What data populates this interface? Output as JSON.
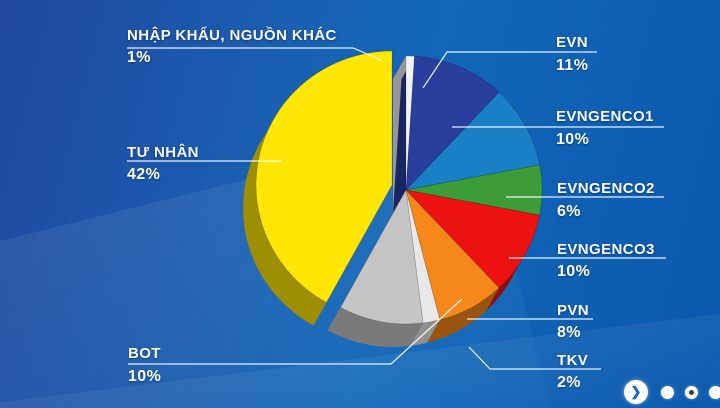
{
  "chart_data": {
    "type": "pie",
    "title": "",
    "style": "3d-exploded",
    "direction": "clockwise",
    "start_angle_deg": 0,
    "unit": "%",
    "slices": [
      {
        "label": "NHẬP KHẨU, NGUỒN KHÁC",
        "value": 1,
        "pct_label": "1%",
        "color": "#f2f2f4"
      },
      {
        "label": "EVN",
        "value": 11,
        "pct_label": "11%",
        "color": "#2a3e9d"
      },
      {
        "label": "EVNGENCO1",
        "value": 10,
        "pct_label": "10%",
        "color": "#1a80c6"
      },
      {
        "label": "EVNGENCO2",
        "value": 6,
        "pct_label": "6%",
        "color": "#3c9c38"
      },
      {
        "label": "EVNGENCO3",
        "value": 10,
        "pct_label": "10%",
        "color": "#ec1212"
      },
      {
        "label": "PVN",
        "value": 8,
        "pct_label": "8%",
        "color": "#f6881a"
      },
      {
        "label": "TKV",
        "value": 2,
        "pct_label": "2%",
        "color": "#e8e8ea"
      },
      {
        "label": "BOT",
        "value": 10,
        "pct_label": "10%",
        "color": "#c5c5c5"
      },
      {
        "label": "TƯ NHÂN",
        "value": 42,
        "pct_label": "42%",
        "color": "#ffe604",
        "exploded": true
      }
    ],
    "legend_position": "callouts-with-leader-lines"
  },
  "background": {
    "left": "#21479f",
    "mid": "#1167b8",
    "right": "#0a58ae"
  },
  "label_color": "#ffffff",
  "nav": {
    "next_icon": "❯",
    "dots": [
      {
        "state": "inactive"
      },
      {
        "state": "active"
      },
      {
        "state": "inactive"
      }
    ]
  }
}
